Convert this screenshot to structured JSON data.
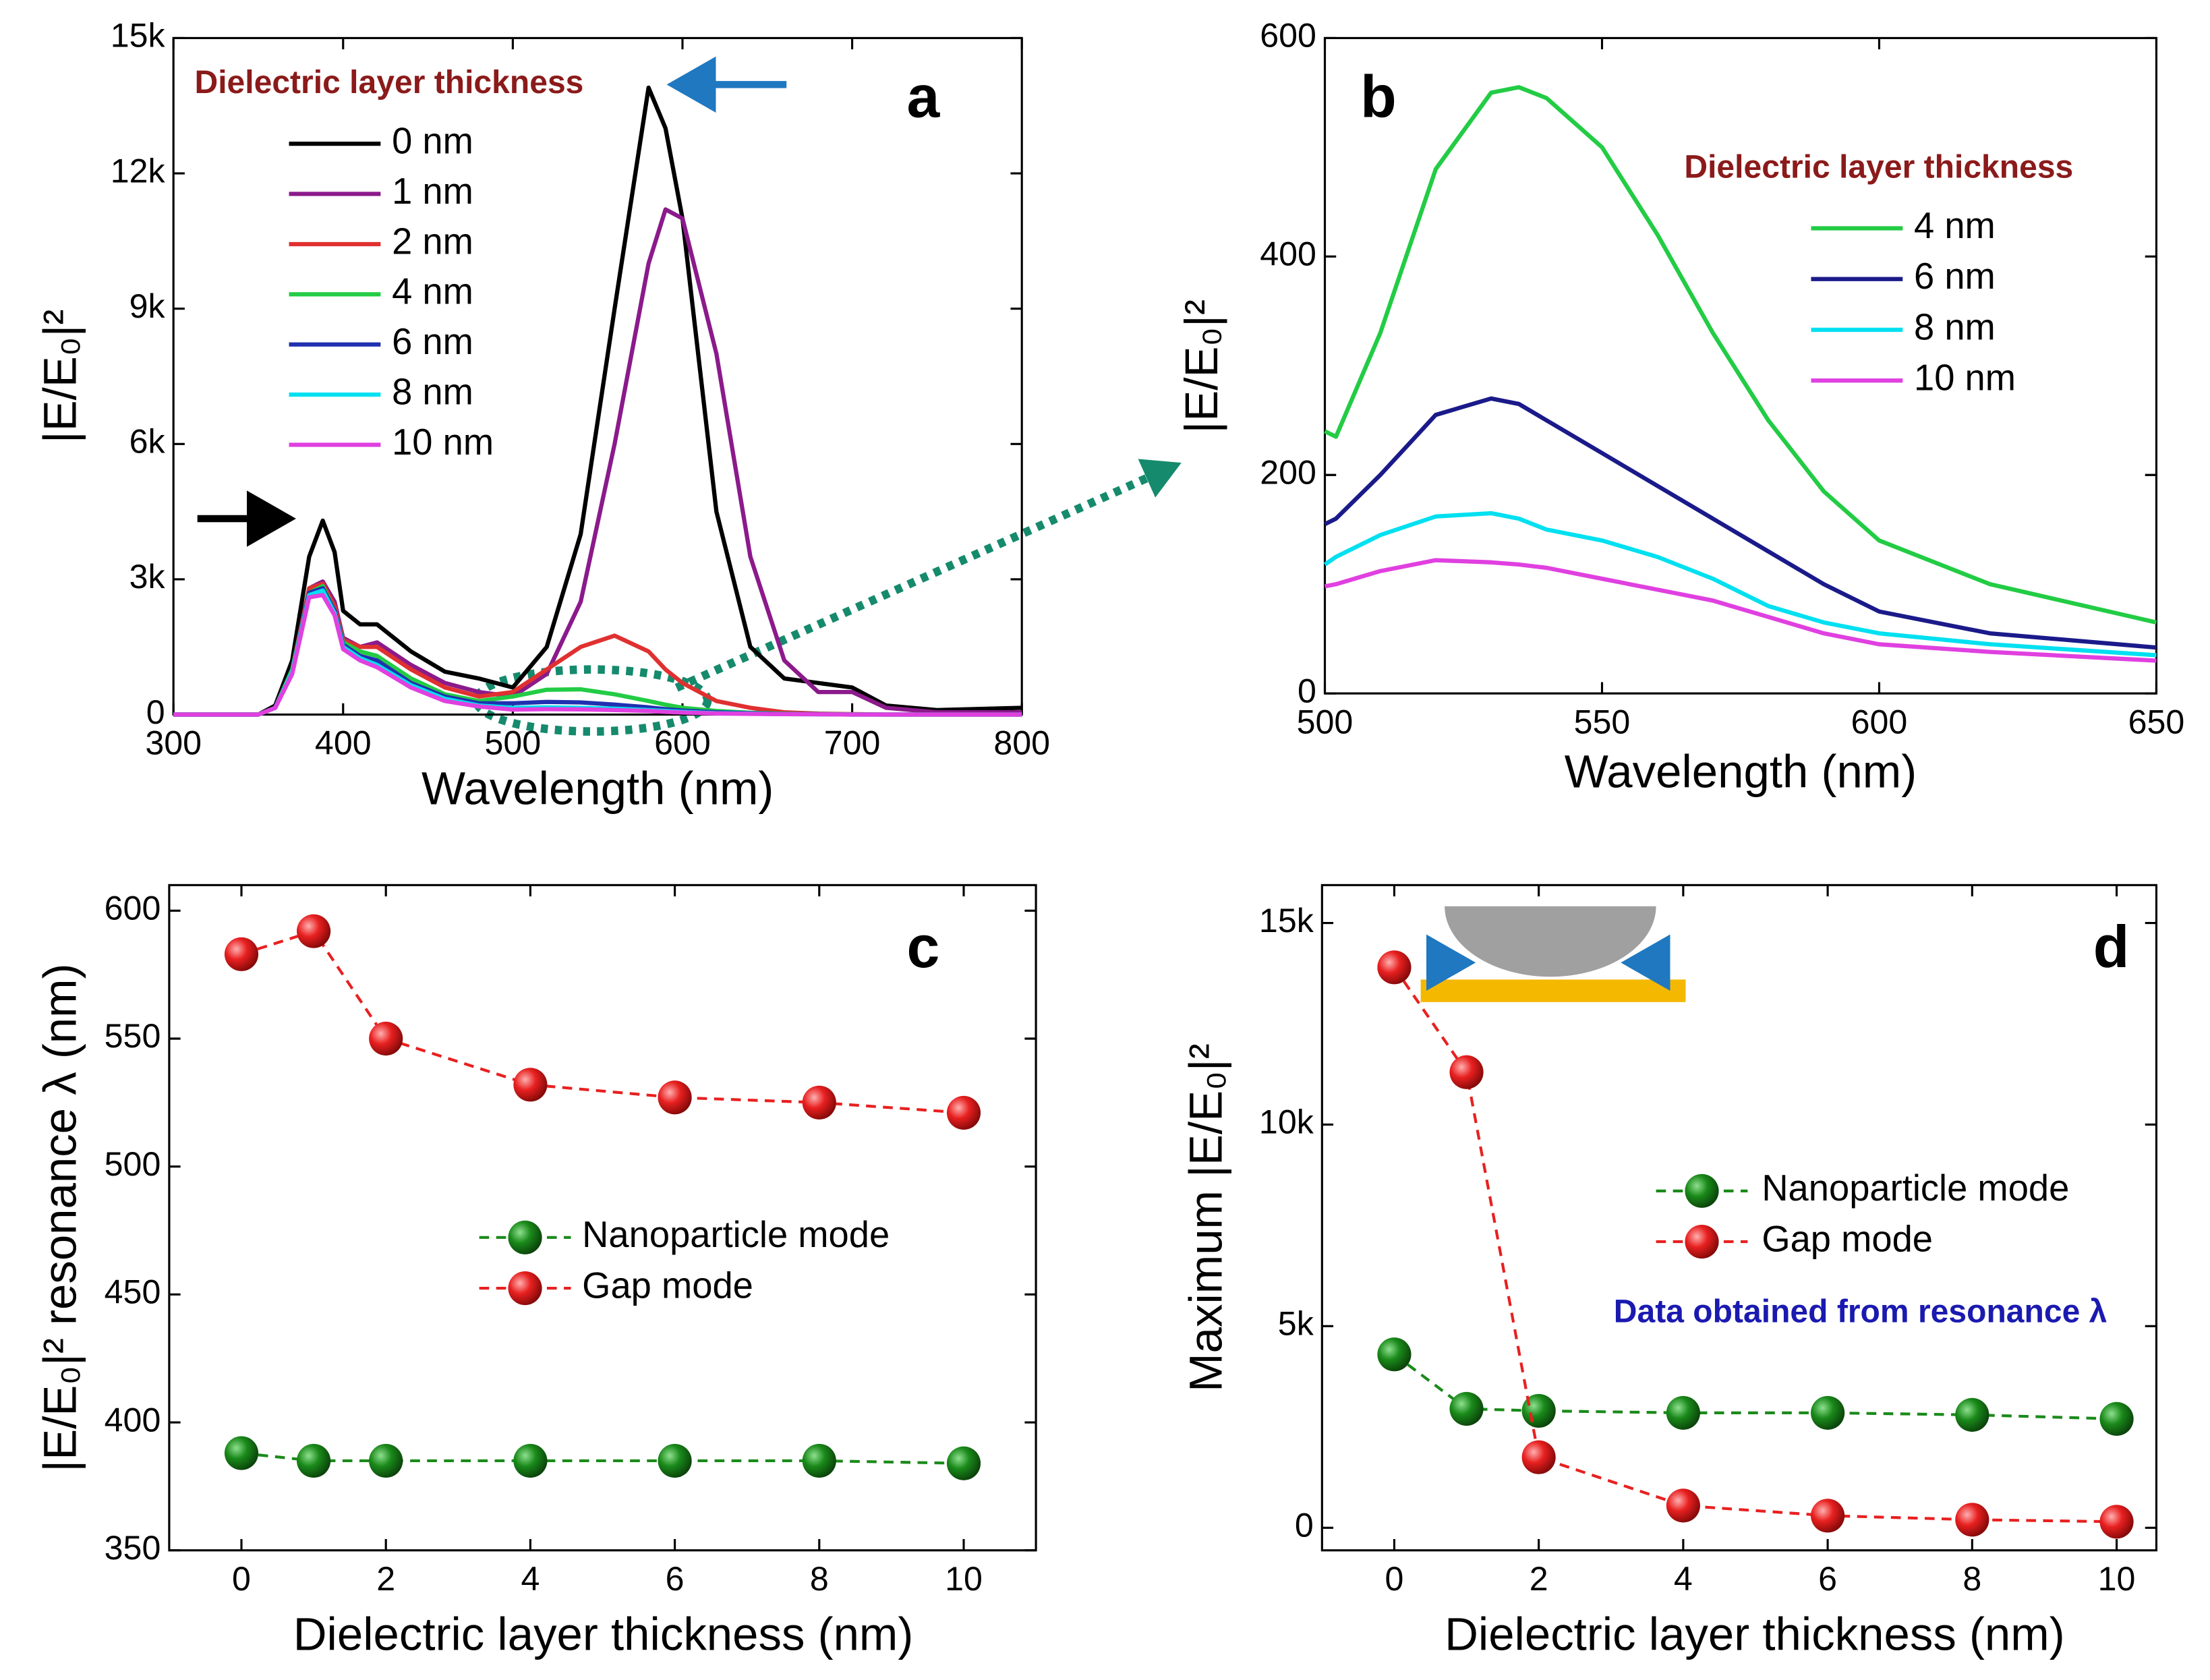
{
  "chart_data": [
    {
      "type": "line",
      "panel_label": "a",
      "xlabel": "Wavelength (nm)",
      "ylabel": "|E/E₀|²",
      "legend_title": "Dielectric layer thickness",
      "xlim": [
        300,
        800
      ],
      "ylim": [
        0,
        15000
      ],
      "xticks": [
        300,
        400,
        500,
        600,
        700,
        800
      ],
      "yticks": [
        0,
        {
          "value": 3000,
          "label": "3k"
        },
        {
          "value": 6000,
          "label": "6k"
        },
        {
          "value": 9000,
          "label": "9k"
        },
        {
          "value": 12000,
          "label": "12k"
        },
        {
          "value": 15000,
          "label": "15k"
        }
      ],
      "x": [
        300,
        350,
        360,
        370,
        380,
        388,
        395,
        400,
        410,
        420,
        440,
        460,
        480,
        500,
        520,
        540,
        560,
        580,
        590,
        600,
        620,
        640,
        660,
        680,
        700,
        720,
        750,
        800
      ],
      "series": [
        {
          "name": "0 nm",
          "color": "#000000",
          "values": [
            0,
            0,
            200,
            1200,
            3500,
            4300,
            3600,
            2300,
            2000,
            2000,
            1400,
            950,
            800,
            600,
            1500,
            4000,
            9000,
            13900,
            13000,
            11000,
            4500,
            1500,
            800,
            700,
            600,
            200,
            100,
            150
          ]
        },
        {
          "name": "1 nm",
          "color": "#8b1a8b",
          "values": [
            0,
            0,
            150,
            1000,
            2800,
            2950,
            2500,
            1700,
            1500,
            1600,
            1100,
            700,
            500,
            400,
            900,
            2500,
            6000,
            10000,
            11200,
            11000,
            8000,
            3500,
            1200,
            500,
            500,
            150,
            50,
            50
          ]
        },
        {
          "name": "2 nm",
          "color": "#e03030",
          "values": [
            0,
            0,
            150,
            1000,
            2800,
            2900,
            2400,
            1650,
            1500,
            1500,
            1000,
            600,
            400,
            500,
            1000,
            1500,
            1750,
            1400,
            1000,
            700,
            300,
            150,
            50,
            20,
            10,
            0,
            0,
            0
          ]
        },
        {
          "name": "4 nm",
          "color": "#22cc44",
          "values": [
            0,
            0,
            150,
            1000,
            2700,
            2850,
            2300,
            1600,
            1400,
            1300,
            800,
            450,
            300,
            400,
            550,
            560,
            450,
            300,
            220,
            150,
            80,
            40,
            20,
            10,
            5,
            0,
            0,
            0
          ]
        },
        {
          "name": "6 nm",
          "color": "#2030b0",
          "values": [
            0,
            0,
            150,
            950,
            2700,
            2800,
            2300,
            1550,
            1300,
            1200,
            700,
            400,
            250,
            250,
            280,
            270,
            220,
            160,
            120,
            90,
            50,
            30,
            15,
            10,
            0,
            0,
            0,
            0
          ]
        },
        {
          "name": "8 nm",
          "color": "#00e0f0",
          "values": [
            0,
            0,
            150,
            950,
            2650,
            2750,
            2250,
            1500,
            1250,
            1100,
            650,
            350,
            200,
            150,
            160,
            150,
            130,
            100,
            80,
            60,
            30,
            20,
            10,
            5,
            0,
            0,
            0,
            0
          ]
        },
        {
          "name": "10 nm",
          "color": "#e040e0",
          "values": [
            0,
            0,
            150,
            900,
            2600,
            2650,
            2200,
            1450,
            1200,
            1050,
            600,
            300,
            180,
            110,
            120,
            115,
            100,
            80,
            60,
            45,
            25,
            15,
            10,
            5,
            0,
            0,
            0,
            0
          ]
        }
      ]
    },
    {
      "type": "line",
      "panel_label": "b",
      "xlabel": "Wavelength (nm)",
      "ylabel": "|E/E₀|²",
      "legend_title": "Dielectric layer thickness",
      "xlim": [
        500,
        650
      ],
      "ylim": [
        0,
        600
      ],
      "xticks": [
        500,
        550,
        600,
        650
      ],
      "yticks": [
        0,
        200,
        400,
        600
      ],
      "x": [
        500,
        502,
        510,
        520,
        530,
        535,
        540,
        550,
        560,
        570,
        580,
        590,
        600,
        620,
        650
      ],
      "series": [
        {
          "name": "4 nm",
          "color": "#22cc44",
          "values": [
            240,
            235,
            330,
            480,
            550,
            555,
            545,
            500,
            420,
            330,
            250,
            185,
            140,
            100,
            65
          ]
        },
        {
          "name": "6 nm",
          "color": "#1a1a8a",
          "values": [
            155,
            160,
            200,
            255,
            270,
            265,
            250,
            220,
            190,
            160,
            130,
            100,
            75,
            55,
            42
          ]
        },
        {
          "name": "8 nm",
          "color": "#00e0f0",
          "values": [
            118,
            125,
            145,
            162,
            165,
            160,
            150,
            140,
            125,
            105,
            80,
            65,
            55,
            45,
            35
          ]
        },
        {
          "name": "10 nm",
          "color": "#e040e0",
          "values": [
            98,
            100,
            112,
            122,
            120,
            118,
            115,
            105,
            95,
            85,
            70,
            55,
            45,
            38,
            30
          ]
        }
      ]
    },
    {
      "type": "line",
      "markers": true,
      "dashed": true,
      "panel_label": "c",
      "xlabel": "Dielectric layer thickness (nm)",
      "ylabel": "|E/E₀|² resonance λ (nm)",
      "xlim": [
        -1,
        11
      ],
      "ylim": [
        350,
        610
      ],
      "xticks": [
        0,
        2,
        4,
        6,
        8,
        10
      ],
      "yticks": [
        350,
        400,
        450,
        500,
        550,
        600
      ],
      "x": [
        0,
        1,
        2,
        4,
        6,
        8,
        10
      ],
      "series": [
        {
          "name": "Nanoparticle mode",
          "color": "#1a8a1a",
          "values": [
            388,
            385,
            385,
            385,
            385,
            385,
            384
          ]
        },
        {
          "name": "Gap mode",
          "color": "#e82020",
          "values": [
            583,
            592,
            550,
            532,
            527,
            525,
            521
          ]
        }
      ]
    },
    {
      "type": "line",
      "markers": true,
      "dashed": true,
      "panel_label": "d",
      "xlabel": "Dielectric layer thickness (nm)",
      "ylabel": "Maximum |E/E₀|²",
      "note": "Data obtained from resonance λ",
      "xlim": [
        -1,
        10.55
      ],
      "ylim": [
        -560,
        15940
      ],
      "xticks": [
        0,
        2,
        4,
        6,
        8,
        10
      ],
      "yticks": [
        0,
        {
          "value": 5000,
          "label": "5k"
        },
        {
          "value": 10000,
          "label": "10k"
        },
        {
          "value": 15000,
          "label": "15k"
        }
      ],
      "x": [
        0,
        1,
        2,
        4,
        6,
        8,
        10
      ],
      "series": [
        {
          "name": "Nanoparticle mode",
          "color": "#1a8a1a",
          "values": [
            4300,
            2950,
            2900,
            2850,
            2850,
            2800,
            2700
          ]
        },
        {
          "name": "Gap mode",
          "color": "#e82020",
          "values": [
            13900,
            11300,
            1750,
            550,
            300,
            200,
            150
          ]
        }
      ]
    }
  ]
}
